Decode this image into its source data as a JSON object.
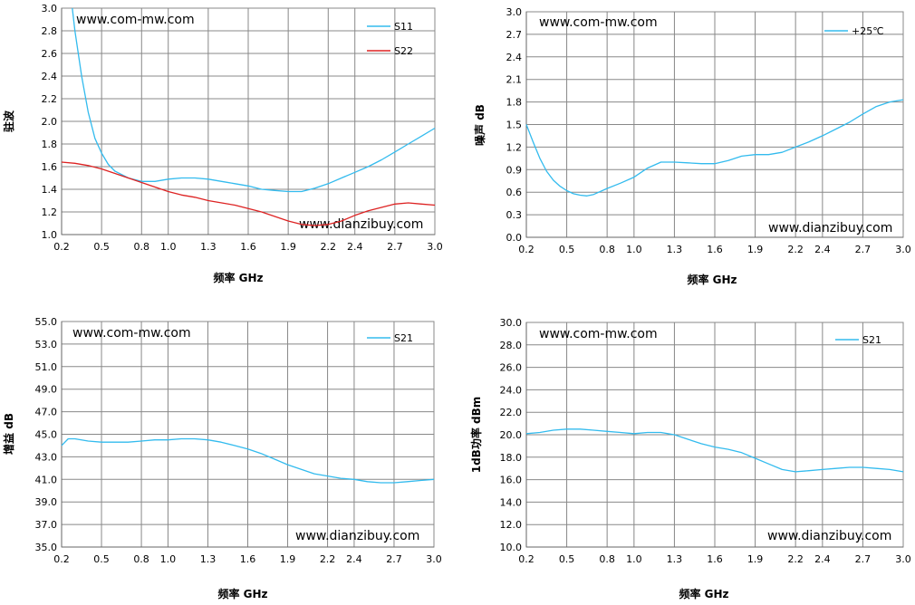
{
  "chart_data": [
    {
      "type": "line",
      "xlabel": "频率 GHz",
      "ylabel": "驻波",
      "xlim": [
        0.2,
        3.0
      ],
      "ylim": [
        1.0,
        3.0
      ],
      "xticks": [
        "0.2",
        "0.5",
        "0.8",
        "1.0",
        "1.3",
        "1.6",
        "1.9",
        "2.2",
        "2.4",
        "2.7",
        "3.0"
      ],
      "yticks": [
        "1.0",
        "1.2",
        "1.4",
        "1.6",
        "1.8",
        "2.0",
        "2.2",
        "2.4",
        "2.6",
        "2.8",
        "3.0"
      ],
      "grid": true,
      "legend_position": "top-right",
      "annotations": [
        "www.com-mw.com",
        "www.dianzibuy.com"
      ],
      "series": [
        {
          "name": "S11",
          "color": "#33BBEE",
          "x": [
            0.28,
            0.3,
            0.35,
            0.4,
            0.45,
            0.5,
            0.55,
            0.6,
            0.7,
            0.8,
            0.9,
            1.0,
            1.1,
            1.2,
            1.3,
            1.4,
            1.5,
            1.6,
            1.7,
            1.8,
            1.9,
            2.0,
            2.1,
            2.2,
            2.3,
            2.4,
            2.5,
            2.6,
            2.7,
            2.8,
            2.9,
            3.0
          ],
          "y": [
            3.0,
            2.8,
            2.4,
            2.08,
            1.85,
            1.72,
            1.62,
            1.56,
            1.5,
            1.47,
            1.47,
            1.49,
            1.5,
            1.5,
            1.49,
            1.47,
            1.45,
            1.43,
            1.4,
            1.39,
            1.38,
            1.38,
            1.41,
            1.45,
            1.5,
            1.55,
            1.6,
            1.66,
            1.73,
            1.8,
            1.87,
            1.94
          ]
        },
        {
          "name": "S22",
          "color": "#DD2222",
          "x": [
            0.2,
            0.3,
            0.4,
            0.5,
            0.6,
            0.7,
            0.8,
            0.9,
            1.0,
            1.1,
            1.2,
            1.3,
            1.4,
            1.5,
            1.6,
            1.7,
            1.8,
            1.9,
            2.0,
            2.1,
            2.2,
            2.3,
            2.4,
            2.5,
            2.6,
            2.7,
            2.8,
            2.9,
            3.0
          ],
          "y": [
            1.64,
            1.63,
            1.61,
            1.58,
            1.54,
            1.5,
            1.46,
            1.42,
            1.38,
            1.35,
            1.33,
            1.3,
            1.28,
            1.26,
            1.23,
            1.2,
            1.16,
            1.12,
            1.09,
            1.08,
            1.09,
            1.12,
            1.17,
            1.21,
            1.24,
            1.27,
            1.28,
            1.27,
            1.26
          ]
        }
      ]
    },
    {
      "type": "line",
      "xlabel": "频率 GHz",
      "ylabel": "噪声 dB",
      "xlim": [
        0.2,
        3.0
      ],
      "ylim": [
        0.0,
        3.0
      ],
      "xticks": [
        "0.2",
        "0.5",
        "0.8",
        "1.0",
        "1.3",
        "1.6",
        "1.9",
        "2.2",
        "2.4",
        "2.7",
        "3.0"
      ],
      "yticks": [
        "0.0",
        "0.3",
        "0.6",
        "0.9",
        "1.2",
        "1.5",
        "1.8",
        "2.1",
        "2.4",
        "2.7",
        "3.0"
      ],
      "grid": true,
      "legend_position": "top-right",
      "annotations": [
        "www.com-mw.com",
        "www.dianzibuy.com"
      ],
      "series": [
        {
          "name": "+25℃",
          "color": "#33BBEE",
          "x": [
            0.2,
            0.25,
            0.3,
            0.35,
            0.4,
            0.45,
            0.5,
            0.55,
            0.6,
            0.65,
            0.7,
            0.8,
            0.9,
            1.0,
            1.1,
            1.2,
            1.3,
            1.4,
            1.5,
            1.6,
            1.7,
            1.8,
            1.9,
            2.0,
            2.1,
            2.2,
            2.3,
            2.4,
            2.5,
            2.6,
            2.7,
            2.8,
            2.9,
            3.0
          ],
          "y": [
            1.5,
            1.27,
            1.05,
            0.88,
            0.76,
            0.68,
            0.62,
            0.58,
            0.56,
            0.55,
            0.57,
            0.65,
            0.72,
            0.8,
            0.92,
            1.0,
            1.0,
            0.99,
            0.98,
            0.98,
            1.02,
            1.08,
            1.1,
            1.1,
            1.13,
            1.2,
            1.27,
            1.35,
            1.44,
            1.53,
            1.64,
            1.74,
            1.8,
            1.83
          ]
        }
      ]
    },
    {
      "type": "line",
      "xlabel": "频率 GHz",
      "ylabel": "增益 dB",
      "xlim": [
        0.2,
        3.0
      ],
      "ylim": [
        35.0,
        55.0
      ],
      "xticks": [
        "0.2",
        "0.5",
        "0.8",
        "1.0",
        "1.3",
        "1.6",
        "1.9",
        "2.2",
        "2.4",
        "2.7",
        "3.0"
      ],
      "yticks": [
        "35.0",
        "37.0",
        "39.0",
        "41.0",
        "43.0",
        "45.0",
        "47.0",
        "49.0",
        "51.0",
        "53.0",
        "55.0"
      ],
      "grid": true,
      "legend_position": "top-right",
      "annotations": [
        "www.com-mw.com",
        "www.dianzibuy.com"
      ],
      "series": [
        {
          "name": "S21",
          "color": "#33BBEE",
          "x": [
            0.2,
            0.25,
            0.3,
            0.4,
            0.5,
            0.6,
            0.7,
            0.8,
            0.9,
            1.0,
            1.1,
            1.2,
            1.3,
            1.4,
            1.5,
            1.6,
            1.7,
            1.8,
            1.9,
            2.0,
            2.1,
            2.2,
            2.3,
            2.4,
            2.5,
            2.6,
            2.7,
            2.8,
            2.9,
            3.0
          ],
          "y": [
            44.0,
            44.6,
            44.6,
            44.4,
            44.3,
            44.3,
            44.3,
            44.4,
            44.5,
            44.5,
            44.6,
            44.6,
            44.5,
            44.3,
            44.0,
            43.7,
            43.3,
            42.8,
            42.3,
            41.9,
            41.5,
            41.3,
            41.1,
            41.0,
            40.8,
            40.7,
            40.7,
            40.8,
            40.9,
            41.0
          ]
        }
      ]
    },
    {
      "type": "line",
      "xlabel": "频率 GHz",
      "ylabel": "1dB功率 dBm",
      "xlim": [
        0.2,
        3.0
      ],
      "ylim": [
        10.0,
        30.0
      ],
      "xticks": [
        "0.2",
        "0.5",
        "0.8",
        "1.0",
        "1.3",
        "1.6",
        "1.9",
        "2.2",
        "2.4",
        "2.7",
        "3.0"
      ],
      "yticks": [
        "10.0",
        "12.0",
        "14.0",
        "16.0",
        "18.0",
        "20.0",
        "22.0",
        "24.0",
        "26.0",
        "28.0",
        "30.0"
      ],
      "grid": true,
      "legend_position": "top-right",
      "annotations": [
        "www.com-mw.com",
        "www.dianzibuy.com"
      ],
      "series": [
        {
          "name": "S21",
          "color": "#33BBEE",
          "x": [
            0.2,
            0.3,
            0.4,
            0.5,
            0.6,
            0.7,
            0.8,
            0.9,
            1.0,
            1.1,
            1.2,
            1.3,
            1.4,
            1.5,
            1.6,
            1.7,
            1.8,
            1.9,
            2.0,
            2.1,
            2.2,
            2.3,
            2.4,
            2.5,
            2.6,
            2.7,
            2.8,
            2.9,
            3.0
          ],
          "y": [
            20.1,
            20.2,
            20.4,
            20.5,
            20.5,
            20.4,
            20.3,
            20.2,
            20.1,
            20.2,
            20.2,
            20.0,
            19.6,
            19.2,
            18.9,
            18.7,
            18.4,
            17.9,
            17.4,
            16.9,
            16.7,
            16.8,
            16.9,
            17.0,
            17.1,
            17.1,
            17.0,
            16.9,
            16.7
          ]
        }
      ]
    }
  ]
}
